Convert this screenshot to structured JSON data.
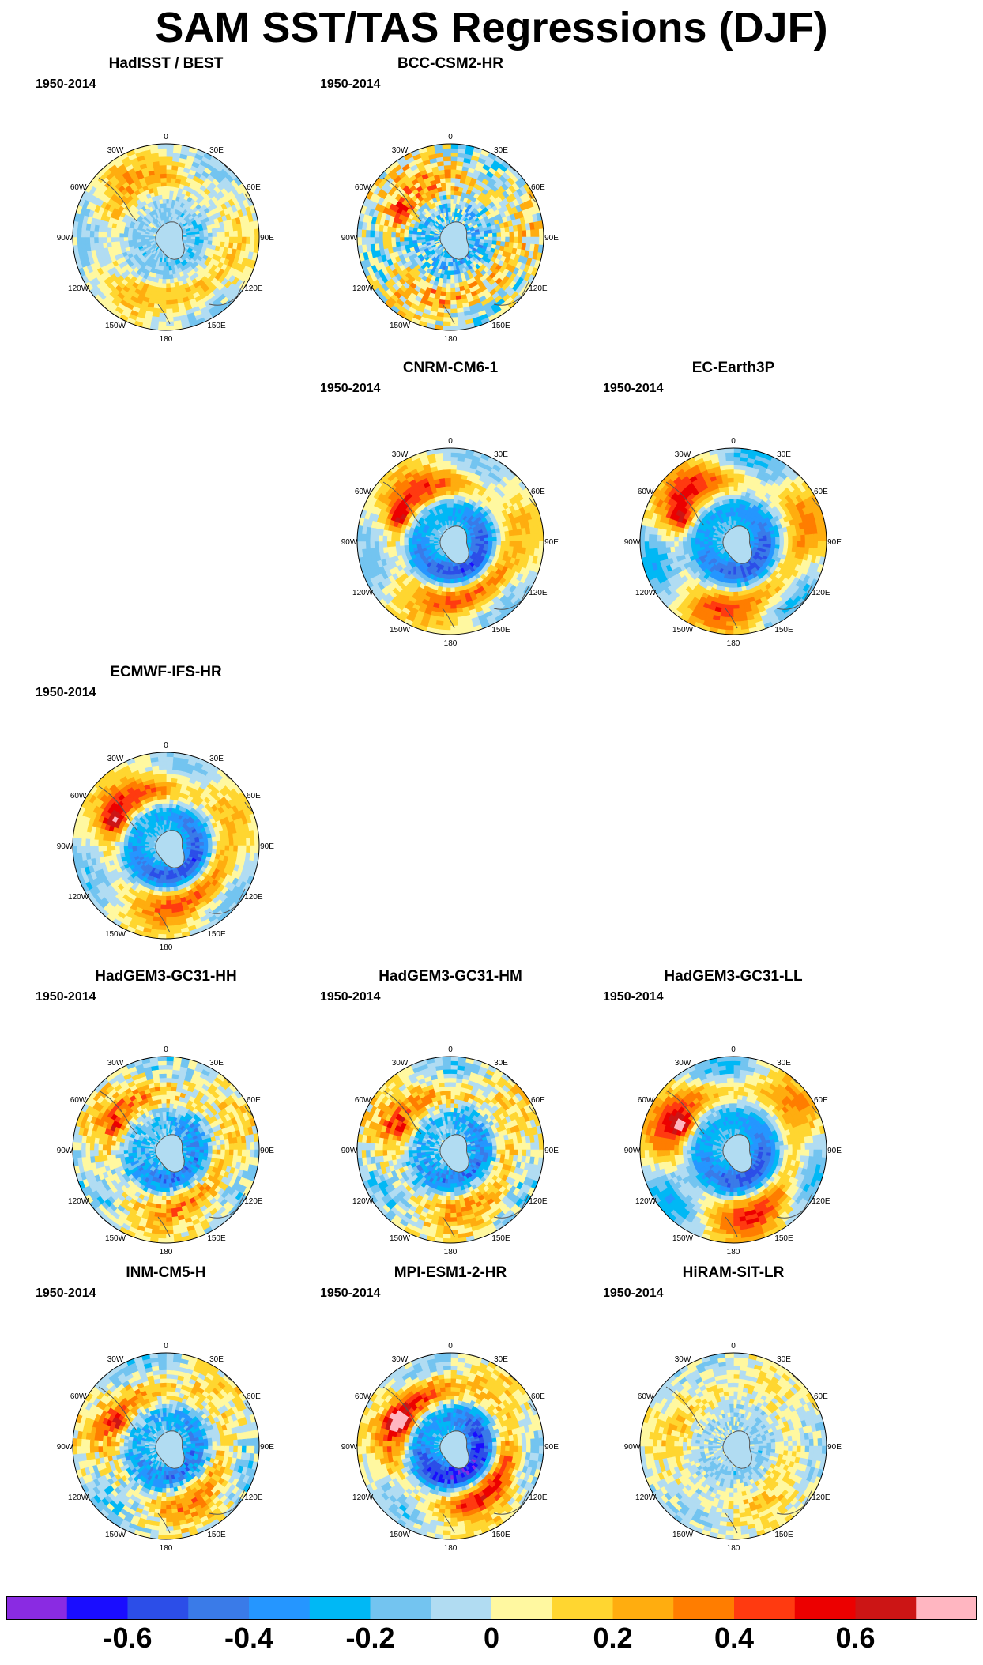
{
  "title": "SAM SST/TAS Regressions (DJF)",
  "panels": [
    {
      "name": "HadISST / BEST",
      "period": "1950-2014",
      "row": 0,
      "col": 0,
      "pattern": "obs"
    },
    {
      "name": "BCC-CSM2-HR",
      "period": "1950-2014",
      "row": 0,
      "col": 1,
      "pattern": "noisy"
    },
    {
      "name": "CNRM-CM6-1",
      "period": "1950-2014",
      "row": 1,
      "col": 1,
      "pattern": "strong"
    },
    {
      "name": "EC-Earth3P",
      "period": "1950-2014",
      "row": 1,
      "col": 2,
      "pattern": "strong2"
    },
    {
      "name": "ECMWF-IFS-HR",
      "period": "1950-2014",
      "row": 2,
      "col": 0,
      "pattern": "strong"
    },
    {
      "name": "HadGEM3-GC31-HH",
      "period": "1950-2014",
      "row": 3,
      "col": 0,
      "pattern": "medium"
    },
    {
      "name": "HadGEM3-GC31-HM",
      "period": "1950-2014",
      "row": 3,
      "col": 1,
      "pattern": "medium"
    },
    {
      "name": "HadGEM3-GC31-LL",
      "period": "1950-2014",
      "row": 3,
      "col": 2,
      "pattern": "strong2"
    },
    {
      "name": "INM-CM5-H",
      "period": "1950-2014",
      "row": 4,
      "col": 0,
      "pattern": "medium"
    },
    {
      "name": "MPI-ESM1-2-HR",
      "period": "1950-2014",
      "row": 4,
      "col": 1,
      "pattern": "verystrong"
    },
    {
      "name": "HiRAM-SIT-LR",
      "period": "1950-2014",
      "row": 4,
      "col": 2,
      "pattern": "weak"
    }
  ],
  "lon_labels": [
    "0",
    "30E",
    "60E",
    "90E",
    "120E",
    "150E",
    "180",
    "150W",
    "120W",
    "90W",
    "60W",
    "30W"
  ],
  "colorbar": {
    "colors": [
      "#8a2be2",
      "#1a0dff",
      "#2c4ee8",
      "#3a7be8",
      "#2596ff",
      "#00b8f5",
      "#73c4f0",
      "#b1dcf2",
      "#fff8a0",
      "#ffd630",
      "#ffad0f",
      "#ff7d00",
      "#ff3a10",
      "#ec0000",
      "#cc1515",
      "#ffb6c1"
    ],
    "levels": [
      -0.7,
      -0.6,
      -0.5,
      -0.4,
      -0.3,
      -0.2,
      -0.1,
      0,
      0.1,
      0.2,
      0.3,
      0.4,
      0.5,
      0.6,
      0.7
    ],
    "tick_labels": [
      "-0.6",
      "-0.4",
      "-0.2",
      "0",
      "0.2",
      "0.4",
      "0.6"
    ],
    "tick_values": [
      -0.6,
      -0.4,
      -0.2,
      0,
      0.2,
      0.4,
      0.6
    ]
  }
}
